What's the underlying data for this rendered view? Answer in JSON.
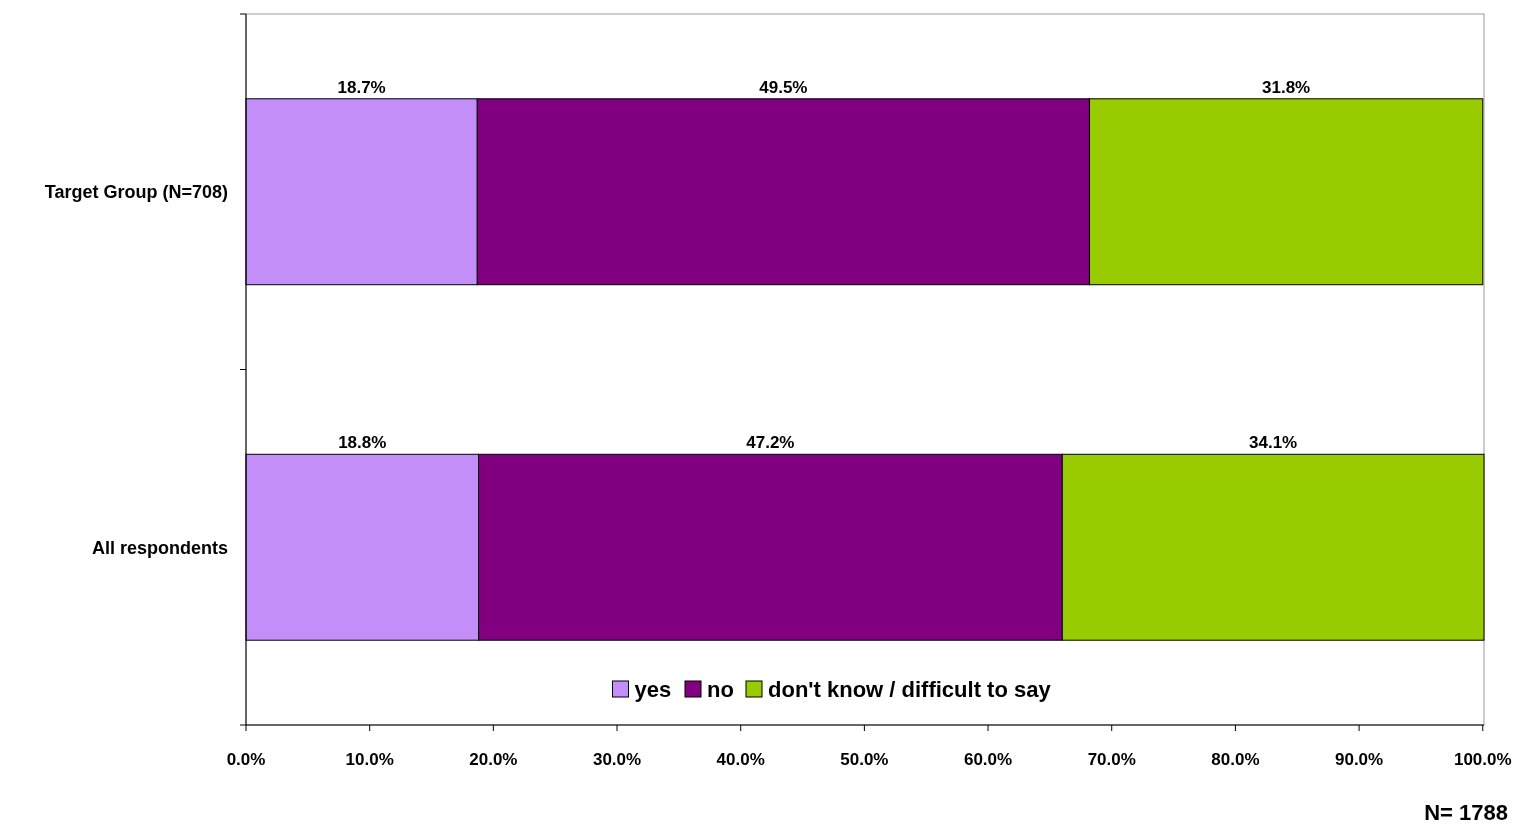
{
  "chart_data": {
    "type": "bar",
    "orientation": "horizontal",
    "stacked": true,
    "categories": [
      "Target Group (N=708)",
      "All respondents"
    ],
    "series": [
      {
        "name": "yes",
        "color": "#c38ef8",
        "values": [
          18.7,
          18.8
        ],
        "value_labels": [
          "18.7%",
          "18.8%"
        ]
      },
      {
        "name": "no",
        "color": "#800080",
        "values": [
          49.5,
          47.2
        ],
        "value_labels": [
          "49.5%",
          "47.2%"
        ]
      },
      {
        "name": "don't know / difficult to say",
        "color": "#99cc00",
        "values": [
          31.8,
          34.1
        ],
        "value_labels": [
          "31.8%",
          "34.1%"
        ]
      }
    ],
    "xlim": [
      0,
      100.1
    ],
    "xticks": [
      {
        "value": 0,
        "label": "0.0%"
      },
      {
        "value": 10,
        "label": "10.0%"
      },
      {
        "value": 20,
        "label": "20.0%"
      },
      {
        "value": 30,
        "label": "30.0%"
      },
      {
        "value": 40,
        "label": "40.0%"
      },
      {
        "value": 50,
        "label": "50.0%"
      },
      {
        "value": 60,
        "label": "60.0%"
      },
      {
        "value": 70,
        "label": "70.0%"
      },
      {
        "value": 80,
        "label": "80.0%"
      },
      {
        "value": 90,
        "label": "90.0%"
      },
      {
        "value": 100,
        "label": "100.0%"
      }
    ],
    "legend": "bottom",
    "annotations": [
      "N= 1788"
    ]
  }
}
